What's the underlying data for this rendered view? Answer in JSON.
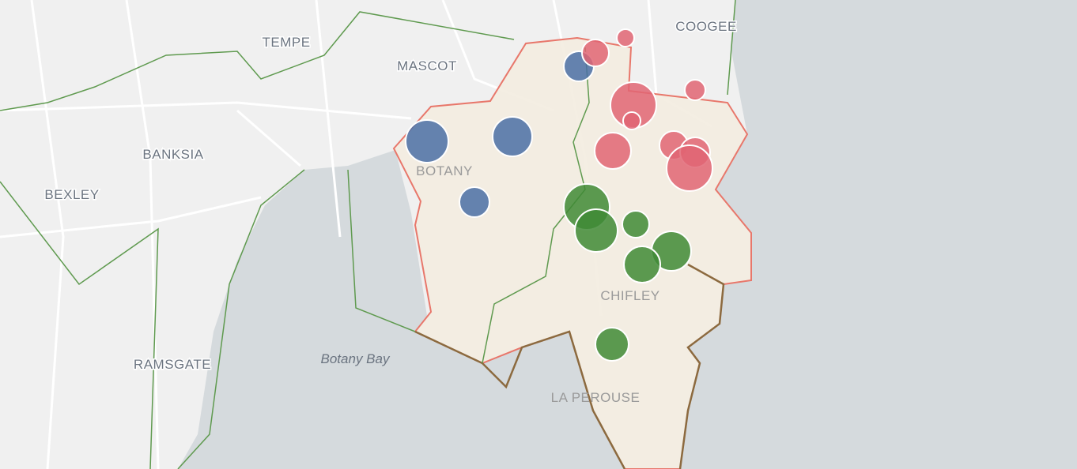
{
  "map": {
    "places": [
      "TEMPE",
      "MASCOT",
      "COOGEE",
      "BANKSIA",
      "BEXLEY",
      "RAMSGATE",
      "BOTANY",
      "CHIFLEY",
      "LA PEROUSE"
    ],
    "water_label": "Botany Bay"
  }
}
